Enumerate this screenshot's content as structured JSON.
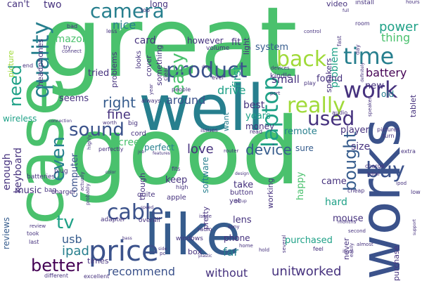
{
  "palette": {
    "dark_purple": "#46327e",
    "indigo": "#3b528b",
    "blue": "#365c8d",
    "teal": "#277f8e",
    "cyan": "#1fa187",
    "green": "#4ac16d",
    "lime": "#a0da39",
    "deep": "#440154"
  },
  "words": [
    {
      "text": "great",
      "color": "#4ac16d"
    },
    {
      "text": "good",
      "color": "#4ac16d"
    },
    {
      "text": "well",
      "color": "#277f8e"
    },
    {
      "text": "case",
      "color": "#4ac16d"
    },
    {
      "text": "like",
      "color": "#365c8d"
    },
    {
      "text": "works",
      "color": "#3b528b"
    },
    {
      "text": "price",
      "color": "#3b528b"
    },
    {
      "text": "product",
      "color": "#3b528b"
    },
    {
      "text": "quality",
      "color": "#277f8e"
    },
    {
      "text": "camera",
      "color": "#277f8e"
    },
    {
      "text": "work",
      "color": "#46327e"
    },
    {
      "text": "time",
      "color": "#277f8e"
    },
    {
      "text": "back",
      "color": "#a0da39"
    },
    {
      "text": "really",
      "color": "#a0da39"
    },
    {
      "text": "easy",
      "color": "#4ac16d"
    },
    {
      "text": "used",
      "color": "#46327e"
    },
    {
      "text": "laptop",
      "color": "#1fa187"
    },
    {
      "text": "sound",
      "color": "#3b528b"
    },
    {
      "text": "cable",
      "color": "#3b528b"
    },
    {
      "text": "better",
      "color": "#440154"
    },
    {
      "text": "buy",
      "color": "#3b528b"
    },
    {
      "text": "bought",
      "color": "#365c8d"
    },
    {
      "text": "even",
      "color": "#277f8e"
    },
    {
      "text": "need",
      "color": "#1fa187"
    },
    {
      "text": "tv",
      "color": "#1fa187"
    },
    {
      "text": "device",
      "color": "#365c8d"
    },
    {
      "text": "unit",
      "color": "#46327e"
    },
    {
      "text": "worked",
      "color": "#46327e"
    },
    {
      "text": "recommend",
      "color": "#3b528b"
    },
    {
      "text": "right",
      "color": "#365c8d"
    },
    {
      "text": "fine",
      "color": "#46327e"
    },
    {
      "text": "love",
      "color": "#46327e"
    },
    {
      "text": "around",
      "color": "#3b528b"
    },
    {
      "text": "ipad",
      "color": "#277f8e"
    },
    {
      "text": "usb",
      "color": "#365c8d"
    },
    {
      "text": "enough",
      "color": "#46327e"
    },
    {
      "text": "keyboard",
      "color": "#46327e"
    },
    {
      "text": "nice",
      "color": "#277f8e"
    },
    {
      "text": "card",
      "color": "#46327e"
    },
    {
      "text": "power",
      "color": "#1fa187"
    },
    {
      "text": "battery",
      "color": "#440154"
    },
    {
      "text": "thing",
      "color": "#4ac16d"
    },
    {
      "text": "problem",
      "color": "#1fa187"
    },
    {
      "text": "small",
      "color": "#46327e"
    },
    {
      "text": "found",
      "color": "#46327e"
    },
    {
      "text": "first",
      "color": "#1fa187"
    },
    {
      "text": "drive",
      "color": "#1fa187"
    },
    {
      "text": "screen",
      "color": "#4ac16d"
    },
    {
      "text": "perfect",
      "color": "#277f8e"
    },
    {
      "text": "best",
      "color": "#46327e"
    },
    {
      "text": "years",
      "color": "#1fa187"
    },
    {
      "text": "money",
      "color": "#46327e"
    },
    {
      "text": "remote",
      "color": "#277f8e"
    },
    {
      "text": "player",
      "color": "#46327e"
    },
    {
      "text": "size",
      "color": "#46327e"
    },
    {
      "text": "sure",
      "color": "#365c8d"
    },
    {
      "text": "new",
      "color": "#46327e"
    },
    {
      "text": "old",
      "color": "#277f8e"
    },
    {
      "text": "hard",
      "color": "#1fa187"
    },
    {
      "text": "mouse",
      "color": "#46327e"
    },
    {
      "text": "came",
      "color": "#46327e"
    },
    {
      "text": "happy",
      "color": "#4ac16d"
    },
    {
      "text": "purchased",
      "color": "#1fa187"
    },
    {
      "text": "without",
      "color": "#46327e"
    },
    {
      "text": "far",
      "color": "#277f8e"
    },
    {
      "text": "phone",
      "color": "#46327e"
    },
    {
      "text": "lens",
      "color": "#46327e"
    },
    {
      "text": "take",
      "color": "#46327e"
    },
    {
      "text": "keep",
      "color": "#46327e"
    },
    {
      "text": "software",
      "color": "#277f8e"
    },
    {
      "text": "computer",
      "color": "#3b528b"
    },
    {
      "text": "music",
      "color": "#46327e"
    },
    {
      "text": "reviews",
      "color": "#365c8d"
    },
    {
      "text": "wireless",
      "color": "#1fa187"
    },
    {
      "text": "seems",
      "color": "#46327e"
    },
    {
      "text": "tried",
      "color": "#46327e"
    },
    {
      "text": "fit",
      "color": "#46327e"
    },
    {
      "text": "system",
      "color": "#365c8d"
    },
    {
      "text": "amazon",
      "color": "#4ac16d"
    },
    {
      "text": "two",
      "color": "#46327e"
    },
    {
      "text": "can't",
      "color": "#46327e"
    },
    {
      "text": "headphones",
      "color": "#46327e"
    },
    {
      "text": "picture",
      "color": "#a0da39"
    },
    {
      "text": "speakers",
      "color": "#46327e"
    },
    {
      "text": "video",
      "color": "#46327e"
    },
    {
      "text": "long",
      "color": "#46327e"
    },
    {
      "text": "however",
      "color": "#46327e"
    },
    {
      "text": "cover",
      "color": "#46327e"
    },
    {
      "text": "light",
      "color": "#46327e"
    },
    {
      "text": "problems",
      "color": "#46327e"
    },
    {
      "text": "something",
      "color": "#46327e"
    },
    {
      "text": "looks",
      "color": "#46327e"
    },
    {
      "text": "want",
      "color": "#277f8e"
    },
    {
      "text": "working",
      "color": "#46327e"
    },
    {
      "text": "pretty",
      "color": "#46327e"
    },
    {
      "text": "though",
      "color": "#46327e"
    },
    {
      "text": "times",
      "color": "#46327e"
    },
    {
      "text": "box",
      "color": "#46327e"
    },
    {
      "text": "purchase",
      "color": "#46327e"
    },
    {
      "text": "apple",
      "color": "#46327e"
    },
    {
      "text": "button",
      "color": "#46327e"
    },
    {
      "text": "yet",
      "color": "#46327e"
    },
    {
      "text": "kindle",
      "color": "#46327e"
    },
    {
      "text": "tablet",
      "color": "#46327e"
    },
    {
      "text": "never",
      "color": "#46327e"
    },
    {
      "text": "cord",
      "color": "#46327e"
    },
    {
      "text": "quite",
      "color": "#46327e"
    },
    {
      "text": "charger",
      "color": "#46327e"
    },
    {
      "text": "plug",
      "color": "#46327e"
    },
    {
      "text": "batteries",
      "color": "#46327e"
    },
    {
      "text": "bag",
      "color": "#46327e"
    },
    {
      "text": "adapter",
      "color": "#46327e"
    },
    {
      "text": "overall",
      "color": "#46327e"
    },
    {
      "text": "windows",
      "color": "#46327e"
    },
    {
      "text": "install",
      "color": "#46327e"
    },
    {
      "text": "volume",
      "color": "#46327e"
    },
    {
      "text": "top",
      "color": "#46327e"
    },
    {
      "text": "bad",
      "color": "#46327e"
    },
    {
      "text": "less",
      "color": "#46327e"
    },
    {
      "text": "end",
      "color": "#46327e"
    },
    {
      "text": "connect",
      "color": "#46327e"
    },
    {
      "text": "always",
      "color": "#46327e"
    },
    {
      "text": "people",
      "color": "#46327e"
    },
    {
      "text": "clear",
      "color": "#46327e"
    },
    {
      "text": "ever",
      "color": "#46327e"
    },
    {
      "text": "devices",
      "color": "#46327e"
    },
    {
      "text": "play",
      "color": "#46327e"
    },
    {
      "text": "room",
      "color": "#46327e"
    },
    {
      "text": "fast",
      "color": "#46327e"
    },
    {
      "text": "day",
      "color": "#46327e"
    },
    {
      "text": "control",
      "color": "#46327e"
    },
    {
      "text": "issues",
      "color": "#46327e"
    },
    {
      "text": "router",
      "color": "#46327e"
    },
    {
      "text": "read",
      "color": "#46327e"
    },
    {
      "text": "port",
      "color": "#46327e"
    },
    {
      "text": "year",
      "color": "#46327e"
    },
    {
      "text": "audio",
      "color": "#46327e"
    },
    {
      "text": "pictures",
      "color": "#46327e"
    },
    {
      "text": "turn",
      "color": "#46327e"
    },
    {
      "text": "extra",
      "color": "#46327e"
    },
    {
      "text": "charge",
      "color": "#46327e"
    },
    {
      "text": "hdmi",
      "color": "#46327e"
    },
    {
      "text": "ipod",
      "color": "#46327e"
    },
    {
      "text": "low",
      "color": "#46327e"
    },
    {
      "text": "cheap",
      "color": "#46327e"
    },
    {
      "text": "second",
      "color": "#46327e"
    },
    {
      "text": "months",
      "color": "#46327e"
    },
    {
      "text": "almost",
      "color": "#46327e"
    },
    {
      "text": "item",
      "color": "#46327e"
    },
    {
      "text": "feel",
      "color": "#46327e"
    },
    {
      "text": "radio",
      "color": "#46327e"
    },
    {
      "text": "fits",
      "color": "#46327e"
    },
    {
      "text": "high",
      "color": "#46327e"
    },
    {
      "text": "design",
      "color": "#46327e"
    },
    {
      "text": "setup",
      "color": "#46327e"
    },
    {
      "text": "issue",
      "color": "#46327e"
    },
    {
      "text": "home",
      "color": "#46327e"
    },
    {
      "text": "sony",
      "color": "#46327e"
    },
    {
      "text": "hold",
      "color": "#46327e"
    },
    {
      "text": "speed",
      "color": "#46327e"
    },
    {
      "text": "color",
      "color": "#46327e"
    },
    {
      "text": "worth",
      "color": "#46327e"
    },
    {
      "text": "big",
      "color": "#46327e"
    },
    {
      "text": "job",
      "color": "#46327e"
    },
    {
      "text": "features",
      "color": "#46327e"
    },
    {
      "text": "actually",
      "color": "#46327e"
    },
    {
      "text": "highly",
      "color": "#46327e"
    },
    {
      "text": "perfectly",
      "color": "#46327e"
    },
    {
      "text": "probably",
      "color": "#46327e"
    },
    {
      "text": "took",
      "color": "#46327e"
    },
    {
      "text": "review",
      "color": "#46327e"
    },
    {
      "text": "last",
      "color": "#46327e"
    },
    {
      "text": "different",
      "color": "#46327e"
    },
    {
      "text": "excellent",
      "color": "#46327e"
    },
    {
      "text": "support",
      "color": "#46327e"
    },
    {
      "text": "several",
      "color": "#46327e"
    },
    {
      "text": "easily",
      "color": "#46327e"
    },
    {
      "text": "speaker",
      "color": "#46327e"
    },
    {
      "text": "definitely",
      "color": "#46327e"
    },
    {
      "text": "connection",
      "color": "#46327e"
    },
    {
      "text": "days",
      "color": "#46327e"
    },
    {
      "text": "full",
      "color": "#46327e"
    },
    {
      "text": "hours",
      "color": "#46327e"
    },
    {
      "text": "side",
      "color": "#46327e"
    },
    {
      "text": "pc",
      "color": "#46327e"
    },
    {
      "text": "try",
      "color": "#46327e"
    },
    {
      "text": "plastic",
      "color": "#46327e"
    },
    {
      "text": "bass",
      "color": "#46327e"
    }
  ]
}
